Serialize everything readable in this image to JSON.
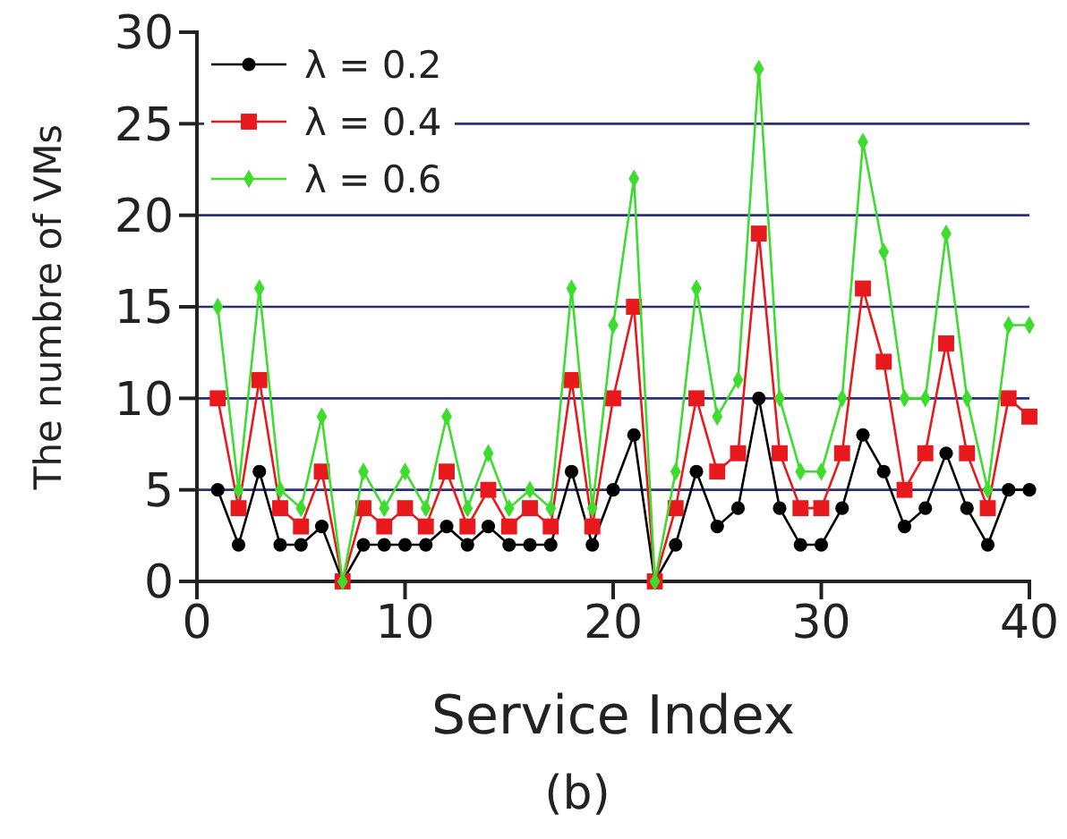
{
  "chart_data": {
    "type": "line",
    "xlabel": "Service Index",
    "ylabel": "The numbre of VMs",
    "annotations": [
      "(b)"
    ],
    "x": [
      1,
      2,
      3,
      4,
      5,
      6,
      7,
      8,
      9,
      10,
      11,
      12,
      13,
      14,
      15,
      16,
      17,
      18,
      19,
      20,
      21,
      22,
      23,
      24,
      25,
      26,
      27,
      28,
      29,
      30,
      31,
      32,
      33,
      34,
      35,
      36,
      37,
      38,
      39,
      40
    ],
    "series": [
      {
        "name": "λ = 0.2",
        "color": "#000000",
        "marker": "circle",
        "values": [
          5,
          2,
          6,
          2,
          2,
          3,
          0,
          2,
          2,
          2,
          2,
          3,
          2,
          3,
          2,
          2,
          2,
          6,
          2,
          5,
          8,
          0,
          2,
          6,
          3,
          4,
          10,
          4,
          2,
          2,
          4,
          8,
          6,
          3,
          4,
          7,
          4,
          2,
          5,
          5
        ]
      },
      {
        "name": "λ = 0.4",
        "color": "#e8191c",
        "marker": "square",
        "values": [
          10,
          4,
          11,
          4,
          3,
          6,
          0,
          4,
          3,
          4,
          3,
          6,
          3,
          5,
          3,
          4,
          3,
          11,
          3,
          10,
          15,
          0,
          4,
          10,
          6,
          7,
          19,
          7,
          4,
          4,
          7,
          16,
          12,
          5,
          7,
          13,
          7,
          4,
          10,
          9
        ]
      },
      {
        "name": "λ = 0.6",
        "color": "#3ddc2e",
        "marker": "diamond",
        "values": [
          15,
          5,
          16,
          5,
          4,
          9,
          0,
          6,
          4,
          6,
          4,
          9,
          4,
          7,
          4,
          5,
          4,
          16,
          4,
          14,
          22,
          0,
          6,
          16,
          9,
          11,
          28,
          10,
          6,
          6,
          10,
          24,
          18,
          10,
          10,
          19,
          10,
          5,
          14,
          14
        ]
      }
    ],
    "xlim": [
      0,
      40
    ],
    "xticks": [
      0,
      10,
      20,
      30,
      40
    ],
    "ylim": [
      0,
      30
    ],
    "yticks": [
      0,
      5,
      10,
      15,
      20,
      25,
      30
    ],
    "grid": "y",
    "legend": "top left"
  }
}
